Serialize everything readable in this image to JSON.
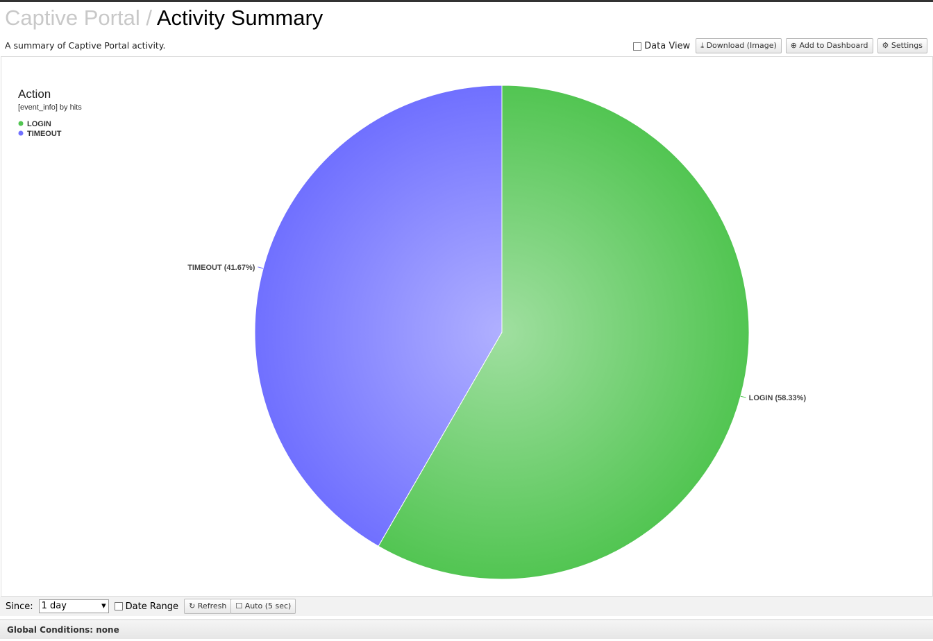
{
  "header": {
    "breadcrumb": "Captive Portal",
    "separator": "/",
    "title": "Activity Summary",
    "description": "A summary of Captive Portal activity."
  },
  "toolbar": {
    "data_view": "Data View",
    "download": "Download (Image)",
    "add": "Add to Dashboard",
    "settings": "Settings"
  },
  "chart_data": {
    "type": "pie",
    "title": "Action",
    "subtitle": "[event_info] by hits",
    "categories": [
      "LOGIN",
      "TIMEOUT"
    ],
    "values": [
      58.33,
      41.67
    ],
    "value_labels": [
      "LOGIN (58.33%)",
      "TIMEOUT (41.67%)"
    ],
    "colors": [
      "#52c552",
      "#7070ff"
    ],
    "legend": "top-left"
  },
  "footer": {
    "since_label": "Since:",
    "since_value": "1 day",
    "date_range": "Date Range",
    "refresh": "Refresh",
    "auto": "Auto (5 sec)",
    "global_conditions": "Global Conditions: none"
  }
}
